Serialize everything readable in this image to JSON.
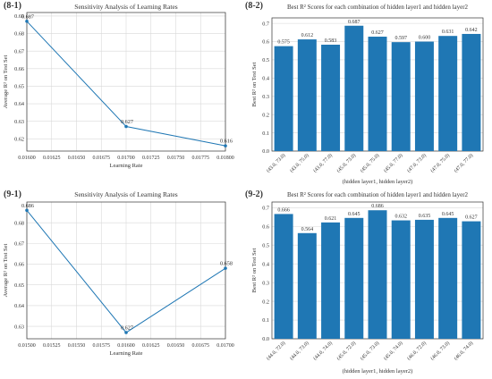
{
  "colors": {
    "line": "#1f77b4",
    "bar": "#1f77b4",
    "grid": "#d9d9d9",
    "axis": "#333333",
    "text": "#333333"
  },
  "chart_data": [
    {
      "id": "p81",
      "panel_label": "(8-1)",
      "type": "line",
      "title": "Sensitivity Analysis of Learning Rates",
      "xlabel": "Learning Rate",
      "ylabel": "Average  R² on Test Set",
      "x": [
        0.016,
        0.017,
        0.018
      ],
      "y": [
        0.687,
        0.627,
        0.616
      ],
      "data_labels": [
        "0.687",
        "0.627",
        "0.616"
      ],
      "xlim": [
        0.016,
        0.018
      ],
      "ylim": [
        0.613,
        0.692
      ],
      "xticks": [
        "0.01600",
        "0.01625",
        "0.01650",
        "0.01675",
        "0.01700",
        "0.01725",
        "0.01750",
        "0.01775",
        "0.01800"
      ],
      "yticks": [
        "0.62",
        "0.63",
        "0.64",
        "0.65",
        "0.66",
        "0.67",
        "0.68",
        "0.69"
      ],
      "grid": true
    },
    {
      "id": "p82",
      "panel_label": "(8-2)",
      "type": "bar",
      "title": "Best  R²  Scores for each combination of hidden layer1 and hidden layer2",
      "xlabel": "(hidden layer1, hidden layer2)",
      "ylabel": "Best  R²  on Test Set",
      "categories": [
        "(43.0, 73.0)",
        "(43.0, 75.0)",
        "(43.0, 77.0)",
        "(45.0, 73.0)",
        "(45.0, 75.0)",
        "(45.0, 77.0)",
        "(47.0, 73.0)",
        "(47.0, 75.0)",
        "(47.0, 77.0)"
      ],
      "values": [
        0.575,
        0.612,
        0.583,
        0.687,
        0.627,
        0.597,
        0.6,
        0.631,
        0.642
      ],
      "data_labels": [
        "0.575",
        "0.612",
        "0.583",
        "0.687",
        "0.627",
        "0.597",
        "0.600",
        "0.631",
        "0.642"
      ],
      "ylim": [
        0,
        0.73
      ],
      "yticks": [
        "0.0",
        "0.1",
        "0.2",
        "0.3",
        "0.4",
        "0.5",
        "0.6",
        "0.7"
      ],
      "grid": true
    },
    {
      "id": "p91",
      "panel_label": "(9-1)",
      "type": "line",
      "title": "Sensitivity Analysis of Learning Rates",
      "xlabel": "Learning Rate",
      "ylabel": "Average  R² on Test Set",
      "x": [
        0.015,
        0.016,
        0.017
      ],
      "y": [
        0.686,
        0.627,
        0.658
      ],
      "data_labels": [
        "0.686",
        "0.627",
        "0.658"
      ],
      "xlim": [
        0.015,
        0.017
      ],
      "ylim": [
        0.624,
        0.69
      ],
      "xticks": [
        "0.01500",
        "0.01525",
        "0.01550",
        "0.01575",
        "0.01600",
        "0.01625",
        "0.01650",
        "0.01675",
        "0.01700"
      ],
      "yticks": [
        "0.63",
        "0.64",
        "0.65",
        "0.66",
        "0.67",
        "0.68"
      ],
      "grid": true
    },
    {
      "id": "p92",
      "panel_label": "(9-2)",
      "type": "bar",
      "title": "Best  R²  Scores for each combination of hidden layer1 and hidden layer2",
      "xlabel": "(hidden layer1, hidden layer2)",
      "ylabel": "Best  R²  on Test Set",
      "categories": [
        "(44.0, 72.0)",
        "(44.0, 73.0)",
        "(44.0, 74.0)",
        "(45.0, 72.0)",
        "(45.0, 73.0)",
        "(45.0, 74.0)",
        "(46.0, 72.0)",
        "(46.0, 73.0)",
        "(46.0, 74.0)"
      ],
      "values": [
        0.666,
        0.564,
        0.621,
        0.645,
        0.686,
        0.632,
        0.635,
        0.645,
        0.627
      ],
      "data_labels": [
        "0.666",
        "0.564",
        "0.621",
        "0.645",
        "0.686",
        "0.632",
        "0.635",
        "0.645",
        "0.627"
      ],
      "ylim": [
        0,
        0.73
      ],
      "yticks": [
        "0.0",
        "0.1",
        "0.2",
        "0.3",
        "0.4",
        "0.5",
        "0.6",
        "0.7"
      ],
      "grid": true
    }
  ]
}
